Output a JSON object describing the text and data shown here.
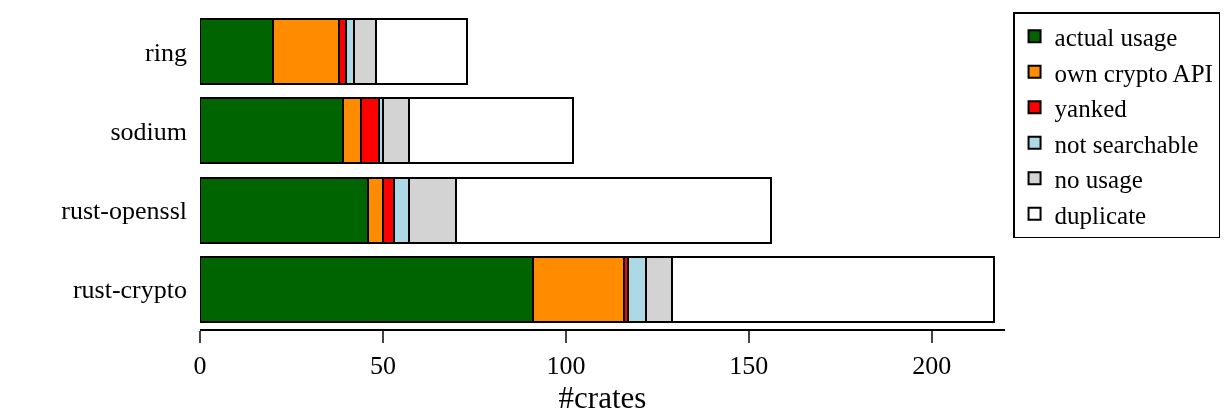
{
  "chart_data": {
    "type": "bar",
    "orientation": "horizontal",
    "stacked": true,
    "xlabel": "#crates",
    "categories": [
      "ring",
      "sodium",
      "rust-openssl",
      "rust-crypto"
    ],
    "series": [
      {
        "name": "actual usage",
        "color": "#006400",
        "values": [
          20,
          39,
          46,
          91
        ]
      },
      {
        "name": "own crypto API",
        "color": "#ff8c00",
        "values": [
          18,
          5,
          4,
          25
        ]
      },
      {
        "name": "yanked",
        "color": "#ff0000",
        "values": [
          2,
          5,
          3,
          1
        ]
      },
      {
        "name": "not searchable",
        "color": "#add8e6",
        "values": [
          2,
          1,
          4,
          5
        ]
      },
      {
        "name": "no usage",
        "color": "#d3d3d3",
        "values": [
          6,
          7,
          13,
          7
        ]
      },
      {
        "name": "duplicate",
        "color": "#ffffff",
        "values": [
          25,
          45,
          86,
          88
        ]
      }
    ],
    "xlim": [
      0,
      220
    ],
    "xticks": [
      0,
      50,
      100,
      150,
      200
    ],
    "grid": false,
    "legend": "right"
  }
}
